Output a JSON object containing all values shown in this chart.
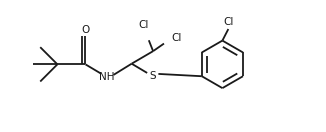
{
  "background_color": "#ffffff",
  "line_color": "#1a1a1a",
  "line_width": 1.3,
  "font_size": 7.5,
  "figsize": [
    3.26,
    1.32
  ],
  "dpi": 100,
  "atoms": {
    "O_label": "O",
    "NH_label": "NH",
    "S_label": "S",
    "Cl1_label": "Cl",
    "Cl2_label": "Cl",
    "Cl3_label": "Cl"
  },
  "xlim": [
    0,
    9.5
  ],
  "ylim": [
    0,
    4.0
  ]
}
